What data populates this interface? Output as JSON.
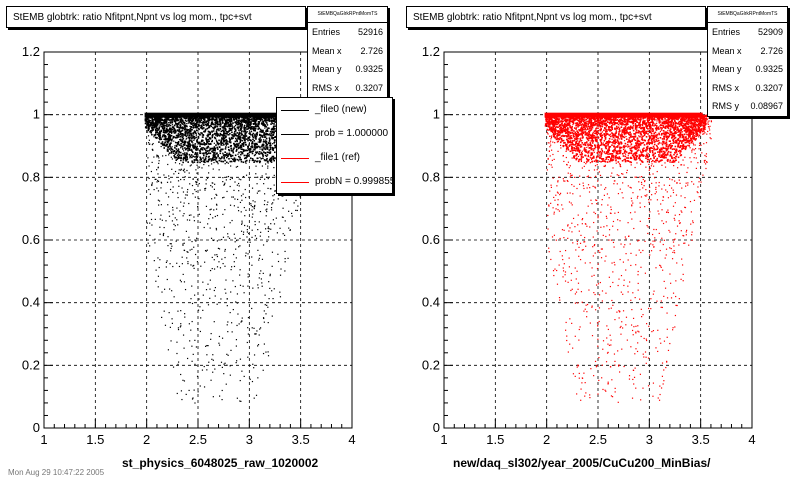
{
  "colors": {
    "ref": "#ff0000",
    "new": "#000000"
  },
  "footer": "Mon Aug 29 10:47:22 2005",
  "chart_data": [
    {
      "type": "scatter",
      "title": "StEMB globtrk: ratio Nfitpnt,Npnt vs log mom., tpc+svt",
      "stats_name": "StEMBQaGlrkRPntMomTS",
      "stats": [
        {
          "label": "Entries",
          "value": "52916"
        },
        {
          "label": "Mean x",
          "value": "2.726"
        },
        {
          "label": "Mean y",
          "value": "0.9325"
        },
        {
          "label": "RMS x",
          "value": "0.3207"
        }
      ],
      "legend": [
        {
          "label": "_file0 (new)",
          "color": "#000000"
        },
        {
          "label": "prob = 1.000000",
          "color": "#000000"
        },
        {
          "label": "_file1 (ref)",
          "color": "#ff0000"
        },
        {
          "label": "probN = 0.999855",
          "color": "#ff0000"
        }
      ],
      "xlabel": "st_physics_6048025_raw_1020002",
      "xlim": [
        1,
        4
      ],
      "ylim": [
        0,
        1.2
      ],
      "xticks": [
        "1",
        "1.5",
        "2",
        "2.5",
        "3",
        "3.5",
        "4"
      ],
      "yticks": [
        "0",
        "0.2",
        "0.4",
        "0.6",
        "0.8",
        "1",
        "1.2"
      ],
      "grid": true,
      "marker_color": "#000000",
      "dense_band": {
        "x": [
          1.98,
          3.55
        ],
        "y": [
          0.85,
          1.0
        ]
      }
    },
    {
      "type": "scatter",
      "title": "StEMB globtrk: ratio Nfitpnt,Npnt vs log mom., tpc+svt",
      "stats_name": "StEMBQaGlrkRPntMomTS",
      "stats": [
        {
          "label": "Entries",
          "value": "52909"
        },
        {
          "label": "Mean x",
          "value": "2.726"
        },
        {
          "label": "Mean y",
          "value": "0.9325"
        },
        {
          "label": "RMS x",
          "value": "0.3207"
        },
        {
          "label": "RMS y",
          "value": "0.08967"
        }
      ],
      "xlabel": "new/daq_sl302/year_2005/CuCu200_MinBias/",
      "xlim": [
        1,
        4
      ],
      "ylim": [
        0,
        1.2
      ],
      "xticks": [
        "1",
        "1.5",
        "2",
        "2.5",
        "3",
        "3.5",
        "4"
      ],
      "yticks": [
        "0",
        "0.2",
        "0.4",
        "0.6",
        "0.8",
        "1",
        "1.2"
      ],
      "grid": true,
      "marker_color": "#ff0000",
      "dense_band": {
        "x": [
          1.98,
          3.55
        ],
        "y": [
          0.85,
          1.0
        ]
      }
    }
  ]
}
